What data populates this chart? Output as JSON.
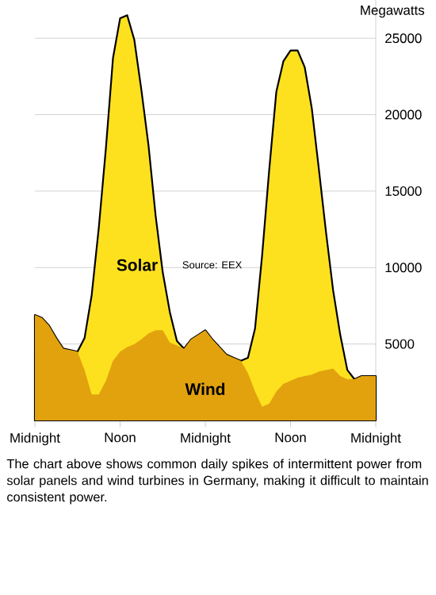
{
  "chart_data": {
    "type": "area",
    "stacked": true,
    "categories": [
      "Midnight",
      null,
      null,
      null,
      null,
      null,
      null,
      null,
      null,
      null,
      null,
      null,
      "Noon",
      null,
      null,
      null,
      null,
      null,
      null,
      null,
      null,
      null,
      null,
      null,
      "Midnight",
      null,
      null,
      null,
      null,
      null,
      null,
      null,
      null,
      null,
      null,
      null,
      "Noon",
      null,
      null,
      null,
      null,
      null,
      null,
      null,
      null,
      null,
      null,
      null,
      "Midnight"
    ],
    "series": [
      {
        "name": "Wind",
        "color": "#e2a20e",
        "values": [
          6900,
          6700,
          6200,
          5400,
          4700,
          4600,
          4500,
          3300,
          1700,
          1700,
          2600,
          3900,
          4500,
          4800,
          5000,
          5300,
          5700,
          5900,
          5900,
          5100,
          4900,
          4700,
          5300,
          5600,
          5900,
          5300,
          4800,
          4300,
          4100,
          3900,
          3100,
          1900,
          900,
          1100,
          1900,
          2400,
          2600,
          2800,
          2900,
          3000,
          3200,
          3300,
          3400,
          2900,
          2700,
          2700,
          2900,
          2900,
          2900
        ]
      },
      {
        "name": "Solar",
        "color": "#fde11e",
        "values": [
          0,
          0,
          0,
          0,
          0,
          0,
          0,
          2100,
          6500,
          10900,
          15200,
          19800,
          21800,
          21700,
          19900,
          16300,
          12300,
          7500,
          3800,
          2000,
          300,
          0,
          0,
          0,
          0,
          0,
          0,
          0,
          0,
          0,
          1000,
          4100,
          9900,
          15300,
          19600,
          21100,
          21600,
          21400,
          20200,
          17400,
          13200,
          9000,
          5100,
          2700,
          600,
          0,
          0,
          0,
          0
        ]
      }
    ],
    "ylim": [
      0,
      27500
    ],
    "yticks": [
      5000,
      10000,
      15000,
      20000,
      25000
    ],
    "ylabel": "Megawatts",
    "grid": "y",
    "annotations": [
      "Source: EEX",
      "The chart above shows common daily spikes of intermittent power from solar panels and wind turbines in Germany, making it difficult to maintain consistent power."
    ]
  }
}
